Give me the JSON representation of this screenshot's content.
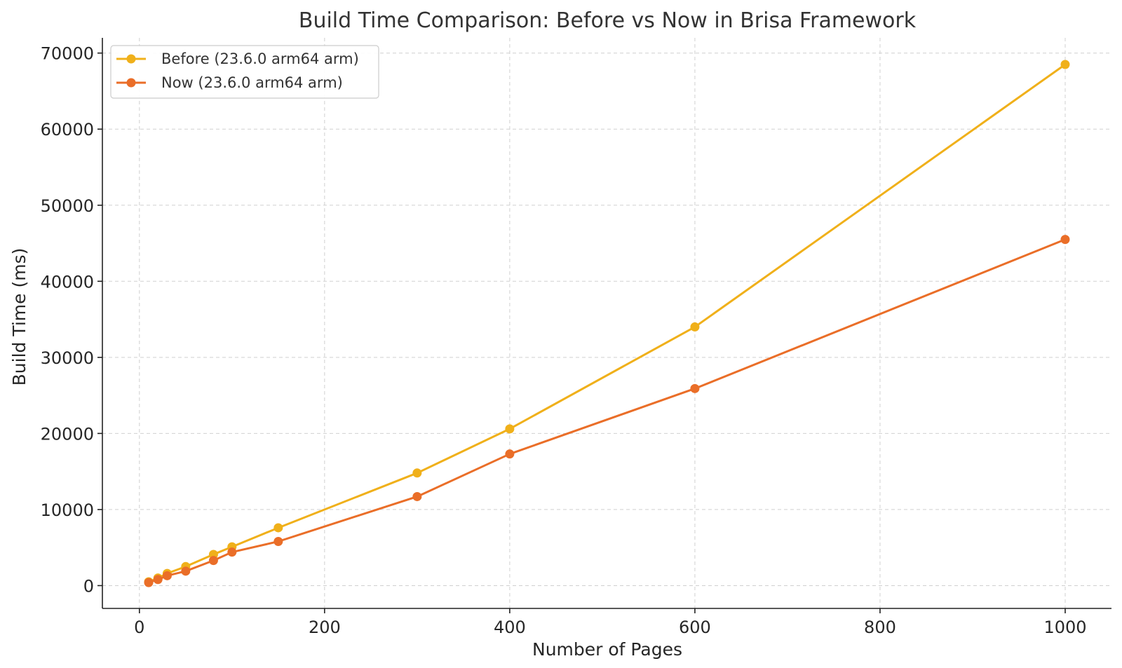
{
  "chart_data": {
    "type": "line",
    "title": "Build Time Comparison: Before vs Now in Brisa Framework",
    "xlabel": "Number of Pages",
    "ylabel": "Build Time (ms)",
    "xlim": [
      -40,
      1050
    ],
    "ylim": [
      -3000,
      72000
    ],
    "x_ticks": [
      "0",
      "200",
      "400",
      "600",
      "800",
      "1000"
    ],
    "y_ticks": [
      "0",
      "10000",
      "20000",
      "30000",
      "40000",
      "50000",
      "60000",
      "70000"
    ],
    "grid": true,
    "legend_position": "top-left",
    "x": [
      10,
      20,
      30,
      50,
      80,
      100,
      150,
      300,
      400,
      600,
      1000
    ],
    "series": [
      {
        "name": "Before (23.6.0 arm64 arm)",
        "color": "#f0b01a",
        "values": [
          500,
          1000,
          1600,
          2500,
          4100,
          5100,
          7600,
          14800,
          20600,
          34000,
          68500
        ]
      },
      {
        "name": "Now (23.6.0 arm64 arm)",
        "color": "#ea6e28",
        "values": [
          400,
          800,
          1300,
          1900,
          3300,
          4400,
          5800,
          11700,
          17300,
          25900,
          45500
        ]
      }
    ]
  }
}
